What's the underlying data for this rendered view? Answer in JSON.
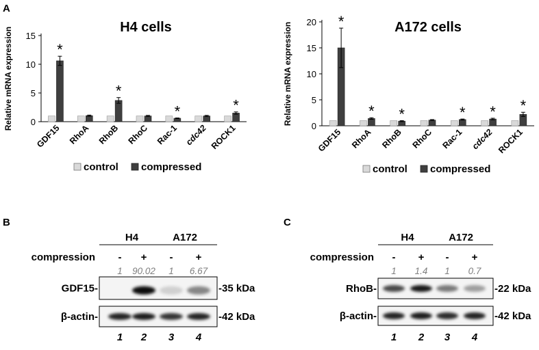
{
  "colors": {
    "control": "#d9d9d9",
    "compressed": "#3f3f3f",
    "axis": "#000000",
    "quant_text": "#7f7f7f"
  },
  "legend": {
    "control": "control",
    "compressed": "compressed"
  },
  "panel_labels": {
    "a": "A",
    "b": "B",
    "c": "C"
  },
  "chart_data": [
    {
      "type": "bar",
      "title": "H4 cells",
      "ylabel": "Relative mRNA expression",
      "xlabel": "",
      "ylim": [
        0,
        15
      ],
      "yticks": [
        0,
        5,
        10,
        15
      ],
      "categories": [
        "GDF15",
        "RhoA",
        "RhoB",
        "RhoC",
        "Rac-1",
        "cdc42",
        "ROCK1"
      ],
      "italic_categories": [
        "cdc42"
      ],
      "series": [
        {
          "name": "control",
          "values": [
            1,
            1,
            1,
            1,
            1,
            1,
            1
          ],
          "errors": [
            0,
            0,
            0,
            0,
            0,
            0,
            0
          ]
        },
        {
          "name": "compressed",
          "values": [
            10.6,
            1.05,
            3.7,
            1.0,
            0.6,
            1.0,
            1.5
          ],
          "errors": [
            0.8,
            0.1,
            0.5,
            0.1,
            0.05,
            0.1,
            0.2
          ]
        }
      ],
      "significance": [
        "*",
        "",
        "*",
        "",
        "*",
        "",
        "*"
      ],
      "legend_position": "bottom",
      "grid": false
    },
    {
      "type": "bar",
      "title": "A172 cells",
      "ylabel": "Relative mRNA expression",
      "xlabel": "",
      "ylim": [
        0,
        20
      ],
      "yticks": [
        0,
        5,
        10,
        15,
        20
      ],
      "categories": [
        "GDF15",
        "RhoA",
        "RhoB",
        "RhoC",
        "Rac-1",
        "cdc42",
        "ROCK1"
      ],
      "italic_categories": [
        "cdc42"
      ],
      "series": [
        {
          "name": "control",
          "values": [
            1,
            1,
            1,
            1,
            1,
            1,
            1
          ],
          "errors": [
            0,
            0,
            0,
            0,
            0,
            0,
            0
          ]
        },
        {
          "name": "compressed",
          "values": [
            15.0,
            1.4,
            0.9,
            1.1,
            1.2,
            1.3,
            2.2
          ],
          "errors": [
            3.8,
            0.15,
            0.1,
            0.1,
            0.1,
            0.15,
            0.4
          ]
        }
      ],
      "significance": [
        "*",
        "*",
        "*",
        "",
        "*",
        "*",
        "*"
      ],
      "legend_position": "bottom",
      "grid": false
    }
  ],
  "blot_b": {
    "groups": [
      "H4",
      "A172"
    ],
    "compression_label": "compression",
    "signs": [
      "-",
      "+",
      "-",
      "+"
    ],
    "quant": [
      "1",
      "90.02",
      "1",
      "6.67"
    ],
    "rows": [
      {
        "label": "GDF15-",
        "size": "-35 kDa"
      },
      {
        "label": "β-actin-",
        "size": "-42 kDa"
      }
    ],
    "lanes": [
      "1",
      "2",
      "3",
      "4"
    ],
    "band_intensity": {
      "GDF15": [
        0.02,
        0.95,
        0.15,
        0.45
      ],
      "actin": [
        0.85,
        0.88,
        0.78,
        0.85
      ]
    }
  },
  "blot_c": {
    "groups": [
      "H4",
      "A172"
    ],
    "compression_label": "compression",
    "signs": [
      "-",
      "+",
      "-",
      "+"
    ],
    "quant": [
      "1",
      "1.4",
      "1",
      "0.7"
    ],
    "rows": [
      {
        "label": "RhoB-",
        "size": "-22 kDa"
      },
      {
        "label": "β-actin-",
        "size": "-42 kDa"
      }
    ],
    "lanes": [
      "1",
      "2",
      "3",
      "4"
    ],
    "band_intensity": {
      "RhoB": [
        0.7,
        0.9,
        0.5,
        0.35
      ],
      "actin": [
        0.85,
        0.88,
        0.82,
        0.85
      ]
    }
  }
}
